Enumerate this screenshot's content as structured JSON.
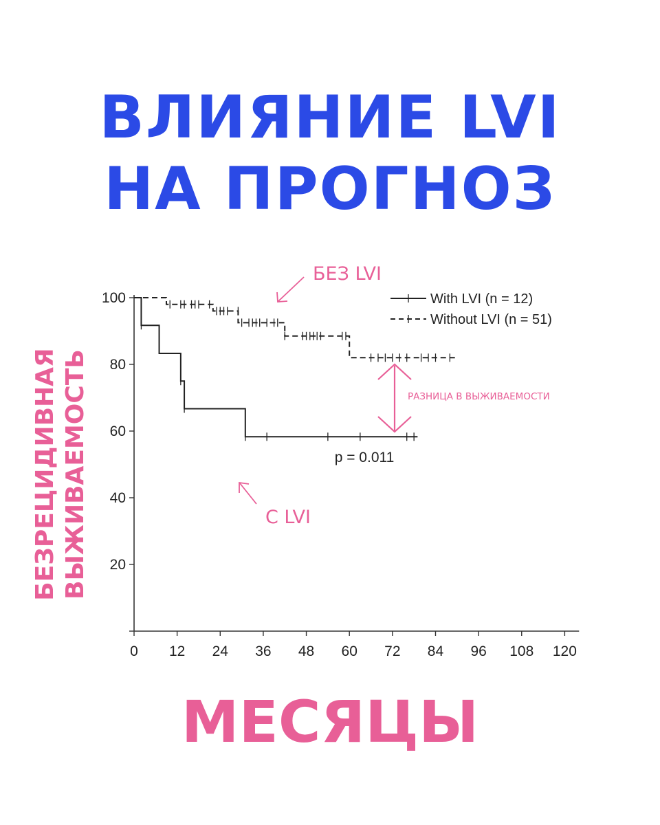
{
  "colors": {
    "title": "#2b4ae6",
    "accent": "#e85f97",
    "line": "#222222",
    "axis": "#333333"
  },
  "title": {
    "line1": "ВЛИЯНИЕ LVI",
    "line2": "НА ПРОГНОЗ"
  },
  "annotations": {
    "ylabel_line1": "БЕЗРЕЦИДИВНАЯ",
    "ylabel_line2": "ВЫЖИВАЕМОСТЬ",
    "xlabel": "МЕСЯЦЫ",
    "without_lvi_label": "БЕЗ LVI",
    "with_lvi_label": "С LVI",
    "difference_label": "РАЗНИЦА В ВЫЖИВАЕМОСТИ"
  },
  "chart_data": {
    "type": "line",
    "subtype": "kaplan-meier",
    "x_ticks": [
      0,
      12,
      24,
      36,
      48,
      60,
      72,
      84,
      96,
      108,
      120
    ],
    "y_ticks": [
      20,
      40,
      60,
      80,
      100
    ],
    "xlim": [
      0,
      124
    ],
    "ylim": [
      0,
      100
    ],
    "grid": false,
    "legend_position": "top-right",
    "p_value_label": "p = 0.011",
    "series": [
      {
        "name": "With LVI (n = 12)",
        "style": "solid",
        "steps": [
          [
            0,
            100
          ],
          [
            2,
            91.7
          ],
          [
            7,
            83.3
          ],
          [
            13,
            75
          ],
          [
            14,
            66.7
          ],
          [
            31,
            58.3
          ],
          [
            79,
            58.3
          ]
        ],
        "censored": [
          [
            2,
            91.7
          ],
          [
            13,
            75
          ],
          [
            14,
            66.7
          ],
          [
            31,
            58.3
          ],
          [
            37,
            58.3
          ],
          [
            54,
            58.3
          ],
          [
            63,
            58.3
          ],
          [
            76,
            58.3
          ],
          [
            78,
            58.3
          ]
        ]
      },
      {
        "name": "Without LVI (n = 51)",
        "style": "dashed",
        "steps": [
          [
            0,
            100
          ],
          [
            9,
            98
          ],
          [
            22,
            96
          ],
          [
            29,
            92.5
          ],
          [
            42,
            88.5
          ],
          [
            60,
            82
          ],
          [
            90,
            82
          ]
        ],
        "censored": [
          [
            10,
            98
          ],
          [
            13,
            98
          ],
          [
            14,
            98
          ],
          [
            16,
            98
          ],
          [
            17,
            98
          ],
          [
            18,
            98
          ],
          [
            21,
            98
          ],
          [
            23,
            96
          ],
          [
            24,
            96
          ],
          [
            25,
            96
          ],
          [
            26,
            96
          ],
          [
            29,
            96
          ],
          [
            30,
            92.5
          ],
          [
            32,
            92.5
          ],
          [
            33,
            92.5
          ],
          [
            34,
            92.5
          ],
          [
            35,
            92.5
          ],
          [
            37,
            92.5
          ],
          [
            39,
            92.5
          ],
          [
            40,
            92.5
          ],
          [
            42,
            88.5
          ],
          [
            47,
            88.5
          ],
          [
            48,
            88.5
          ],
          [
            49,
            88.5
          ],
          [
            50,
            88.5
          ],
          [
            51,
            88.5
          ],
          [
            52,
            88.5
          ],
          [
            58,
            88.5
          ],
          [
            59,
            88.5
          ],
          [
            66,
            82
          ],
          [
            68,
            82
          ],
          [
            70,
            82
          ],
          [
            72,
            82
          ],
          [
            74,
            82
          ],
          [
            76,
            82
          ],
          [
            80,
            82
          ],
          [
            82,
            82
          ],
          [
            84,
            82
          ],
          [
            88,
            82
          ]
        ]
      }
    ]
  }
}
